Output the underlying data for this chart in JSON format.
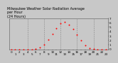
{
  "title": "Milwaukee Weather Solar Radiation Average\nper Hour\n(24 Hours)",
  "hours": [
    0,
    1,
    2,
    3,
    4,
    5,
    6,
    7,
    8,
    9,
    10,
    11,
    12,
    13,
    14,
    15,
    16,
    17,
    18,
    19,
    20,
    21,
    22,
    23
  ],
  "solar": [
    0,
    0,
    0,
    0,
    0,
    0,
    5,
    40,
    110,
    210,
    340,
    470,
    580,
    620,
    560,
    460,
    330,
    200,
    90,
    25,
    3,
    0,
    0,
    0
  ],
  "dot_color": "#ff0000",
  "bg_color": "#c8c8c8",
  "plot_bg": "#c8c8c8",
  "grid_color": "#888888",
  "ylim": [
    0,
    700
  ],
  "xlim": [
    -0.5,
    23.5
  ],
  "ytick_values": [
    0,
    100,
    200,
    300,
    400,
    500,
    600,
    700
  ],
  "ytick_labels": [
    "0",
    "1",
    "2",
    "3",
    "4",
    "5",
    "6",
    "7"
  ],
  "xtick_values": [
    0,
    1,
    2,
    3,
    4,
    5,
    6,
    7,
    8,
    9,
    10,
    11,
    12,
    13,
    14,
    15,
    16,
    17,
    18,
    19,
    20,
    21,
    22,
    23
  ],
  "vgrid_positions": [
    4,
    8,
    12,
    16,
    20
  ],
  "dot_size": 2.0,
  "title_fontsize": 3.5,
  "tick_fontsize": 3.0
}
